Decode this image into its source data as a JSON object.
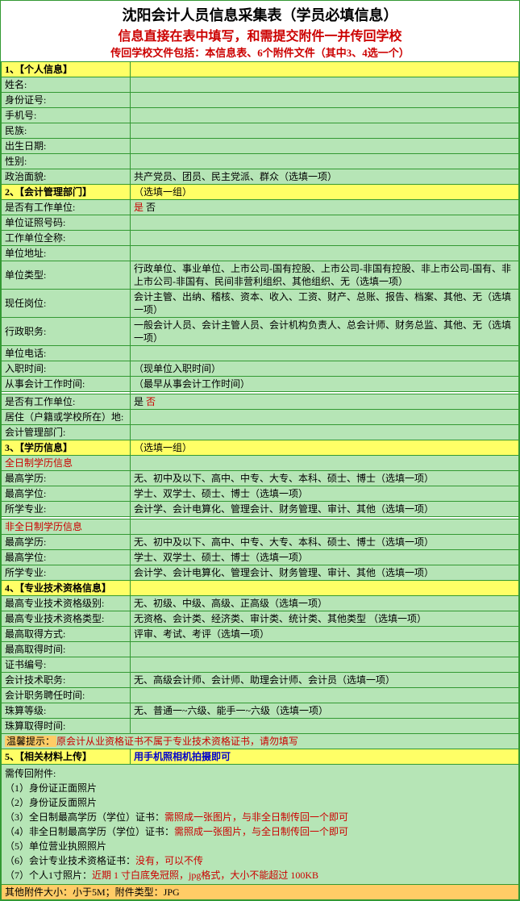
{
  "header": {
    "title1": "沈阳会计人员信息采集表（学员必填信息）",
    "title2": "信息直接在表中填写，和需提交附件一并传回学校",
    "title3": "传回学校文件包括：本信息表、6个附件文件（其中3、4选一个）"
  },
  "s1": {
    "head": "1、【个人信息】",
    "name": "姓名:",
    "id": "身份证号:",
    "phone": "手机号:",
    "nation": "民族:",
    "birth": "出生日期:",
    "gender": "性别:",
    "politics": "政治面貌:",
    "politics_opts": "共产党员、团员、民主党派、群众（选填一项）"
  },
  "s2": {
    "head": "2、【会计管理部门】",
    "head_note": "（选填一组）",
    "has_unit": "是否有工作单位:",
    "has_unit_opts_a": "是",
    "has_unit_opts_b": "  否",
    "cert_no": "单位证照号码:",
    "unit_name": "工作单位全称:",
    "unit_addr": "单位地址:",
    "unit_type": "单位类型:",
    "unit_type_opts": "行政单位、事业单位、上市公司-国有控股、上市公司-非国有控股、非上市公司-国有、非上市公司-非国有、民间非营利组织、其他组织、无（选填一项）",
    "post": "现任岗位:",
    "post_opts": "会计主管、出纳、稽核、资本、收入、工资、财产、总账、报告、档案、其他、无（选填一项）",
    "admin": "行政职务:",
    "admin_opts": "一般会计人员、会计主管人员、会计机构负责人、总会计师、财务总监、其他、无（选填一项）",
    "unit_tel": "单位电话:",
    "join_time": "入职时间:",
    "join_time_note": "（现单位入职时间）",
    "acc_start": "从事会计工作时间:",
    "acc_start_note": "（最早从事会计工作时间）",
    "has_unit2": "是否有工作单位:",
    "has_unit2_a": "是",
    "has_unit2_b": "  否",
    "residence": "居住（户籍或学校所在）地:",
    "acc_dept": "会计管理部门:"
  },
  "s3": {
    "head": "3、【学历信息】",
    "head_note": "（选填一组）",
    "full_label": "全日制学历信息",
    "edu": "最高学历:",
    "edu_opts": "无、初中及以下、高中、中专、大专、本科、硕士、博士（选填一项）",
    "degree": "最高学位:",
    "degree_opts": "学士、双学士、硕士、博士（选填一项）",
    "major": "所学专业:",
    "major_opts": "会计学、会计电算化、管理会计、财务管理、审计、其他（选填一项）",
    "part_label": "非全日制学历信息",
    "edu2": "最高学历:",
    "edu2_opts": "无、初中及以下、高中、中专、大专、本科、硕士、博士（选填一项）",
    "degree2": "最高学位:",
    "degree2_opts": "学士、双学士、硕士、博士（选填一项）",
    "major2": "所学专业:",
    "major2_opts": "会计学、会计电算化、管理会计、财务管理、审计、其他（选填一项）"
  },
  "s4": {
    "head": "4、【专业技术资格信息】",
    "lvl": "最高专业技术资格级别:",
    "lvl_opts": "无、初级、中级、高级、正高级（选填一项）",
    "type": "最高专业技术资格类型:",
    "type_opts": "无资格、会计类、经济类、审计类、统计类、其他类型 （选填一项）",
    "method": "最高取得方式:",
    "method_opts": "评审、考试、考评（选填一项）",
    "time": "最高取得时间:",
    "cert_no": "证书编号:",
    "acc_title": "会计技术职务:",
    "acc_title_opts": "无、高级会计师、会计师、助理会计师、会计员（选填一项）",
    "acc_title_time": "会计职务聘任时间:",
    "abacus": "珠算等级:",
    "abacus_opts": "无、普通一~六级、能手一~六级（选填一项）",
    "abacus_time": "珠算取得时间:",
    "warn_a": "温馨提示：",
    "warn_b": "原会计从业资格证书不属于专业技术资格证书，请勿填写"
  },
  "s5": {
    "head": "5、【相关材料上传】",
    "head_note": "用手机照相机拍摄即可",
    "intro": "需传回附件:",
    "a1": "（1）身份证正面照片",
    "a2": "（2）身份证反面照片",
    "a3a": "（3）全日制最高学历（学位）证书：",
    "a3b": "需照成一张图片，与非全日制传回一个即可",
    "a4a": "（4）非全日制最高学历（学位）证书：",
    "a4b": "需照成一张图片，与全日制传回一个即可",
    "a5": "（5）单位营业执照照片",
    "a6a": "（6）会计专业技术资格证书：",
    "a6b": "没有，可以不传",
    "a7a": "（7）个人1寸照片：",
    "a7b": "近期 1 寸白底免冠照，jpg格式，大小不能超过 100KB",
    "foot": "其他附件大小：小于5M；附件类型：JPG"
  }
}
